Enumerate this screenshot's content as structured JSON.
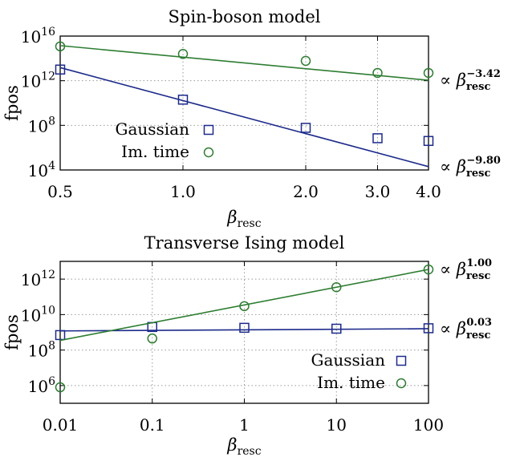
{
  "chart_data": [
    {
      "type": "scatter",
      "title": "Spin-boson model",
      "xlabel": {
        "symbol": "β",
        "subscript": "resc"
      },
      "ylabel": "fpos",
      "xscale": "log",
      "yscale": "log",
      "xlim": [
        0.5,
        4.0
      ],
      "ylim": [
        10000.0,
        1e+16
      ],
      "xticks": [
        0.5,
        1.0,
        2.0,
        3.0,
        4.0
      ],
      "xtick_labels": [
        "0.5",
        "1.0",
        "2.0",
        "3.0",
        "4.0"
      ],
      "yticks": [
        10000.0,
        100000000.0,
        1000000000000.0,
        1e+16
      ],
      "ytick_labels": [
        {
          "base": "10",
          "exp": "4"
        },
        {
          "base": "10",
          "exp": "8"
        },
        {
          "base": "10",
          "exp": "12"
        },
        {
          "base": "10",
          "exp": "16"
        }
      ],
      "grid": true,
      "legend_position": "center-left",
      "series": [
        {
          "name": "Gaussian",
          "marker": "square",
          "color": "#1c2a8a",
          "x": [
            0.5,
            1.0,
            2.0,
            3.0,
            4.0
          ],
          "y": [
            10000000000000.0,
            20000000000.0,
            60000000.0,
            7000000.0,
            4000000.0
          ],
          "fit": {
            "x": [
              0.5,
              4.0
            ],
            "y": [
              15000000000000.0,
              20000.0
            ]
          },
          "annotation": {
            "prefix": "∝ ",
            "symbol": "β",
            "subscript": "resc",
            "exponent": "−9.80"
          }
        },
        {
          "name": "Im. time",
          "marker": "circle",
          "color": "#2e7d32",
          "x": [
            0.5,
            1.0,
            2.0,
            3.0,
            4.0
          ],
          "y": [
            1200000000000000.0,
            250000000000000.0,
            60000000000000.0,
            5000000000000.0,
            5000000000000.0
          ],
          "fit": {
            "x": [
              0.5,
              4.0
            ],
            "y": [
              1400000000000000.0,
              1100000000000.0
            ]
          },
          "annotation": {
            "prefix": "∝ ",
            "symbol": "β",
            "subscript": "resc",
            "exponent": "−3.42"
          }
        }
      ]
    },
    {
      "type": "scatter",
      "title": "Transverse Ising model",
      "xlabel": {
        "symbol": "β",
        "subscript": "resc"
      },
      "ylabel": "fpos",
      "xscale": "log",
      "yscale": "log",
      "xlim": [
        0.01,
        100
      ],
      "ylim": [
        100000.0,
        10000000000000.0
      ],
      "xticks": [
        0.01,
        0.1,
        1,
        10,
        100
      ],
      "xtick_labels": [
        "0.01",
        "0.1",
        "1",
        "10",
        "100"
      ],
      "yticks": [
        1000000.0,
        100000000.0,
        10000000000.0,
        1000000000000.0
      ],
      "ytick_labels": [
        {
          "base": "10",
          "exp": "6"
        },
        {
          "base": "10",
          "exp": "8"
        },
        {
          "base": "10",
          "exp": "10"
        },
        {
          "base": "10",
          "exp": "12"
        }
      ],
      "grid": true,
      "legend_position": "bottom-right",
      "series": [
        {
          "name": "Gaussian",
          "marker": "square",
          "color": "#1c2a8a",
          "x": [
            0.01,
            0.1,
            1,
            10,
            100
          ],
          "y": [
            700000000.0,
            2000000000.0,
            1800000000.0,
            1600000000.0,
            1700000000.0
          ],
          "fit": {
            "x": [
              0.01,
              100
            ],
            "y": [
              1200000000.0,
              1600000000.0
            ]
          },
          "annotation": {
            "prefix": "∝ ",
            "symbol": "β",
            "subscript": "resc",
            "exponent": "0.03"
          }
        },
        {
          "name": "Im. time",
          "marker": "circle",
          "color": "#2e7d32",
          "x": [
            0.01,
            0.1,
            1,
            10,
            100
          ],
          "y": [
            800000.0,
            450000000.0,
            30000000000.0,
            350000000000.0,
            3500000000000.0
          ],
          "fit": {
            "x": [
              0.01,
              100
            ],
            "y": [
              350000000.0,
              3500000000000.0
            ]
          },
          "annotation": {
            "prefix": "∝ ",
            "symbol": "β",
            "subscript": "resc",
            "exponent": "1.00"
          }
        }
      ]
    }
  ]
}
